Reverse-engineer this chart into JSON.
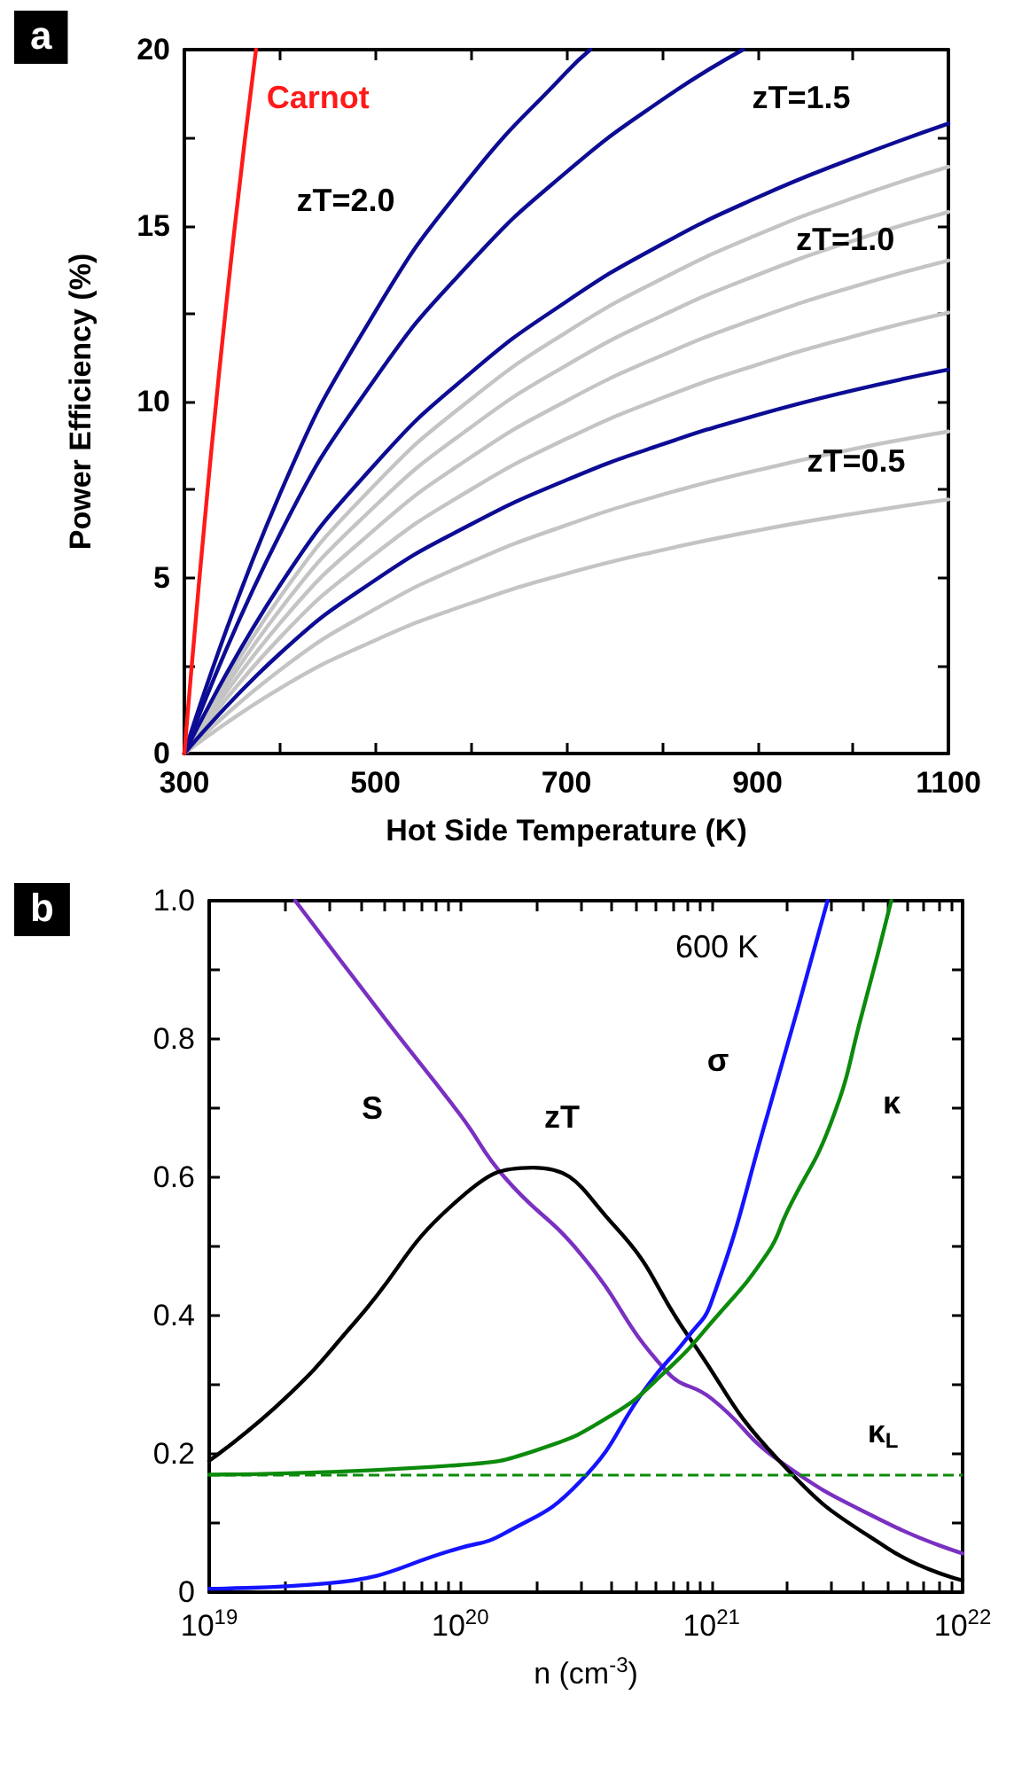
{
  "chart_data": [
    {
      "type": "line",
      "title": "a",
      "xlabel": "Hot Side Temperature (K)",
      "ylabel": "Power Efficiency (%)",
      "marker": "none",
      "grid": false,
      "x": [
        300,
        400,
        500,
        600,
        700,
        800,
        900,
        1000,
        1100
      ],
      "xlim": [
        300,
        1100
      ],
      "xticks": [
        300,
        {
          "value": 400,
          "label": null
        },
        500,
        {
          "value": 600,
          "label": null
        },
        700,
        {
          "value": 800,
          "label": null
        },
        900,
        {
          "value": 1000,
          "label": null
        },
        1100
      ],
      "ylim": [
        0,
        20
      ],
      "yticks": [
        0,
        {
          "value": 2.5,
          "label": null
        },
        5,
        {
          "value": 7.5,
          "label": null
        },
        10,
        {
          "value": 12.5,
          "label": null
        },
        15,
        {
          "value": 17.5,
          "label": null
        },
        20
      ],
      "series": [
        {
          "color": "#c4c4c4",
          "values": [
            0,
            1.85,
            3.22,
            4.27,
            5.11,
            5.78,
            6.34,
            6.81,
            7.22
          ]
        },
        {
          "color": "#c4c4c4",
          "values": [
            0,
            2.37,
            4.11,
            5.44,
            6.49,
            7.35,
            8.05,
            8.65,
            9.15
          ]
        },
        {
          "color": "#c4c4c4",
          "values": [
            0,
            3.29,
            5.68,
            7.5,
            8.94,
            10.1,
            11.05,
            11.85,
            12.53
          ]
        },
        {
          "color": "#c4c4c4",
          "values": [
            0,
            3.7,
            6.38,
            8.42,
            10.02,
            11.31,
            12.37,
            13.26,
            14.01
          ]
        },
        {
          "color": "#c4c4c4",
          "values": [
            0,
            4.08,
            7.04,
            9.27,
            11.03,
            12.44,
            13.6,
            14.57,
            15.39
          ]
        },
        {
          "color": "#c4c4c4",
          "values": [
            0,
            4.44,
            7.65,
            10.07,
            11.97,
            13.49,
            14.74,
            15.78,
            16.67
          ]
        },
        {
          "color": "#0c0c94",
          "values": [
            0,
            2.84,
            4.93,
            6.51,
            7.77,
            8.78,
            9.62,
            10.32,
            10.91
          ]
        },
        {
          "color": "#0c0c94",
          "values": [
            0,
            4.78,
            8.23,
            10.82,
            12.84,
            14.47,
            15.8,
            16.91,
            17.9
          ]
        },
        {
          "color": "#0c0c94",
          "x": [
            300,
            400,
            500,
            600,
            700,
            800,
            885
          ],
          "values": [
            0,
            6.23,
            10.66,
            13.96,
            16.52,
            18.57,
            20
          ]
        },
        {
          "color": "#0c0c94",
          "x": [
            300,
            400,
            500,
            600,
            700,
            725
          ],
          "values": [
            0,
            7.37,
            12.56,
            16.4,
            19.36,
            20
          ]
        },
        {
          "name": "Carnot",
          "color": "#ff1a1a",
          "x": [
            300,
            325,
            350,
            375
          ],
          "values": [
            0,
            7.69,
            14.29,
            20
          ]
        }
      ],
      "annotations": [
        "zT=2.0",
        "zT=1.5",
        {
          "text": "zT=1.0",
          "x": 992,
          "y": 14.6
        },
        "zT=0.5"
      ]
    },
    {
      "type": "line",
      "title": "b",
      "subtitle": "600 K",
      "xlabel": "n (cm$^{-3}$)",
      "marker": "none",
      "grid": false,
      "log": "x",
      "xlim": [
        1e+19,
        1e+22
      ],
      "xticks": [
        {
          "value": 1e+19,
          "label": "10$^{19}$"
        },
        {
          "value": 2e+19,
          "label": null
        },
        {
          "value": 3e+19,
          "label": null
        },
        {
          "value": 4e+19,
          "label": null
        },
        {
          "value": 5e+19,
          "label": null
        },
        {
          "value": 6e+19,
          "label": null
        },
        {
          "value": 7e+19,
          "label": null
        },
        {
          "value": 8e+19,
          "label": null
        },
        {
          "value": 9e+19,
          "label": null
        },
        {
          "value": 1e+20,
          "label": "10$^{20}$"
        },
        {
          "value": 2e+20,
          "label": null
        },
        {
          "value": 3e+20,
          "label": null
        },
        {
          "value": 4e+20,
          "label": null
        },
        {
          "value": 5e+20,
          "label": null
        },
        {
          "value": 6e+20,
          "label": null
        },
        {
          "value": 7e+20,
          "label": null
        },
        {
          "value": 8e+20,
          "label": null
        },
        {
          "value": 9e+20,
          "label": null
        },
        {
          "value": 1e+21,
          "label": "10$^{21}$"
        },
        {
          "value": 2e+21,
          "label": null
        },
        {
          "value": 3e+21,
          "label": null
        },
        {
          "value": 4e+21,
          "label": null
        },
        {
          "value": 5e+21,
          "label": null
        },
        {
          "value": 6e+21,
          "label": null
        },
        {
          "value": 7e+21,
          "label": null
        },
        {
          "value": 8e+21,
          "label": null
        },
        {
          "value": 9e+21,
          "label": null
        },
        {
          "value": 1e+22,
          "label": "10$^{22}$"
        }
      ],
      "ylim": [
        0,
        1
      ],
      "yticks": [
        0,
        {
          "value": 0.1,
          "label": null
        },
        0.2,
        {
          "value": 0.3,
          "label": null
        },
        0.4,
        {
          "value": 0.5,
          "label": null
        },
        0.6,
        {
          "value": 0.7,
          "label": null
        },
        0.8,
        {
          "value": 0.9,
          "label": null
        },
        {
          "value": 1,
          "label": "1.0"
        }
      ],
      "series": [
        {
          "color": "#7a30c0",
          "x": [
            2.2e+19,
            5e+19,
            1e+20,
            1.5e+20,
            3e+20,
            6.6e+20,
            1e+21,
            1.86e+21,
            5e+21,
            1e+22
          ],
          "values": [
            1.0,
            0.83,
            0.69,
            0.6,
            0.49,
            0.32,
            0.28,
            0.19,
            0.1,
            0.056
          ]
        },
        {
          "color": "#000000",
          "x": [
            1e+19,
            2e+19,
            3.8e+19,
            1e+20,
            1.95e+20,
            4.1e+20,
            8.1e+20,
            1.86e+21,
            5e+21,
            1e+22
          ],
          "values": [
            0.19,
            0.28,
            0.39,
            0.57,
            0.614,
            0.53,
            0.37,
            0.19,
            0.064,
            0.017
          ]
        },
        {
          "color": "#1414ff",
          "x": [
            1e+19,
            3e+19,
            1e+20,
            1.5e+20,
            3e+20,
            5.6e+20,
            8.1e+20,
            1e+21,
            1.67e+21,
            2.9e+21
          ],
          "values": [
            0.005,
            0.013,
            0.064,
            0.085,
            0.16,
            0.3,
            0.37,
            0.42,
            0.69,
            1.0
          ]
        },
        {
          "color": "#0c8a0c",
          "x": [
            1e+19,
            1e+20,
            2e+20,
            4e+20,
            6.6e+20,
            1e+21,
            1.67e+21,
            2e+21,
            3e+21,
            4e+21,
            5.2e+21
          ],
          "values": [
            0.17,
            0.184,
            0.205,
            0.256,
            0.32,
            0.39,
            0.49,
            0.55,
            0.68,
            0.84,
            1.0
          ]
        }
      ],
      "ref_lines": [
        {
          "axis": "y",
          "value": 0.17,
          "label": "κ$_{L}$",
          "color": "#0c8a0c",
          "line_style": "dashed"
        }
      ],
      "annotations": [
        "S",
        "zT",
        "σ",
        "κ"
      ]
    }
  ]
}
